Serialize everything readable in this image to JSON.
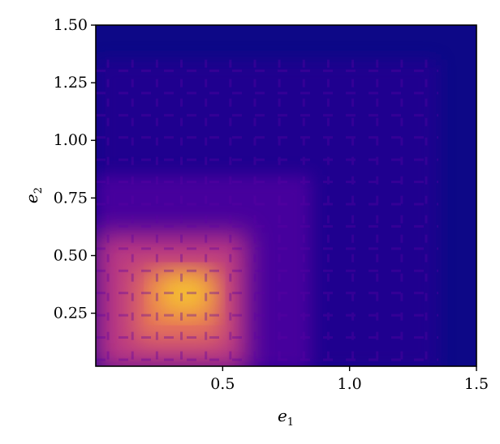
{
  "chart_data": {
    "type": "heatmap",
    "title": "",
    "xlabel": "e",
    "xlabel_sub": "1",
    "ylabel": "e",
    "ylabel_sub": "2",
    "xlim": [
      0.0,
      1.5
    ],
    "ylim": [
      0.02,
      1.5
    ],
    "colormap": "plasma",
    "grid": false,
    "x_ticks": [
      {
        "value": 0.5,
        "label": "0.5"
      },
      {
        "value": 1.0,
        "label": "1.0"
      },
      {
        "value": 1.5,
        "label": "1.5"
      }
    ],
    "y_ticks": [
      {
        "value": 0.25,
        "label": "0.25"
      },
      {
        "value": 0.5,
        "label": "0.50"
      },
      {
        "value": 0.75,
        "label": "0.75"
      },
      {
        "value": 1.0,
        "label": "1.00"
      },
      {
        "value": 1.25,
        "label": "1.25"
      },
      {
        "value": 1.5,
        "label": "1.50"
      }
    ],
    "regions": [
      {
        "x": [
          0.0,
          1.35
        ],
        "y": [
          0.0,
          1.35
        ],
        "intensity": 0.12
      },
      {
        "x": [
          0.0,
          0.85
        ],
        "y": [
          0.0,
          0.85
        ],
        "intensity": 0.25
      },
      {
        "x": [
          0.0,
          0.6
        ],
        "y": [
          0.0,
          0.6
        ],
        "intensity": 0.55
      },
      {
        "x": [
          0.15,
          0.5
        ],
        "y": [
          0.12,
          0.45
        ],
        "intensity": 0.72
      },
      {
        "x": [
          0.25,
          0.45
        ],
        "y": [
          0.25,
          0.42
        ],
        "intensity": 0.9
      }
    ],
    "colors": {
      "background": "#0d0887",
      "low": "#2a0593",
      "mid_low": "#6a00a8",
      "mid": "#b12a90",
      "mid_high": "#e16462",
      "high": "#fca636",
      "peak": "#f0f921"
    }
  }
}
